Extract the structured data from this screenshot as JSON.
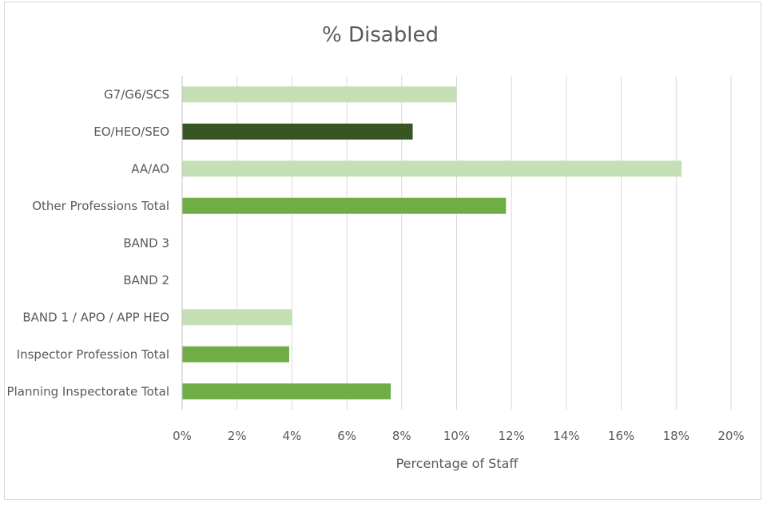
{
  "chart_data": {
    "type": "bar",
    "orientation": "horizontal",
    "title": "% Disabled",
    "xlabel": "Percentage of Staff",
    "ylabel": "",
    "xlim": [
      0,
      20
    ],
    "x_ticks": [
      0,
      2,
      4,
      6,
      8,
      10,
      12,
      14,
      16,
      18,
      20
    ],
    "x_tick_labels": [
      "0%",
      "2%",
      "4%",
      "6%",
      "8%",
      "10%",
      "12%",
      "14%",
      "16%",
      "18%",
      "20%"
    ],
    "grid": true,
    "legend": "none",
    "categories": [
      "G7/G6/SCS",
      "EO/HEO/SEO",
      "AA/AO",
      "Other Professions Total",
      "BAND 3",
      "BAND 2",
      "BAND 1 / APO / APP HEO",
      "Inspector Profession Total",
      "Planning Inspectorate Total"
    ],
    "values": [
      10.0,
      8.4,
      18.2,
      11.8,
      0,
      0,
      4.0,
      3.9,
      7.6
    ],
    "colors": [
      "#c5e0b4",
      "#375623",
      "#c5e0b4",
      "#70ad47",
      "#c5e0b4",
      "#c5e0b4",
      "#c5e0b4",
      "#70ad47",
      "#70ad47"
    ],
    "unit": "%"
  }
}
